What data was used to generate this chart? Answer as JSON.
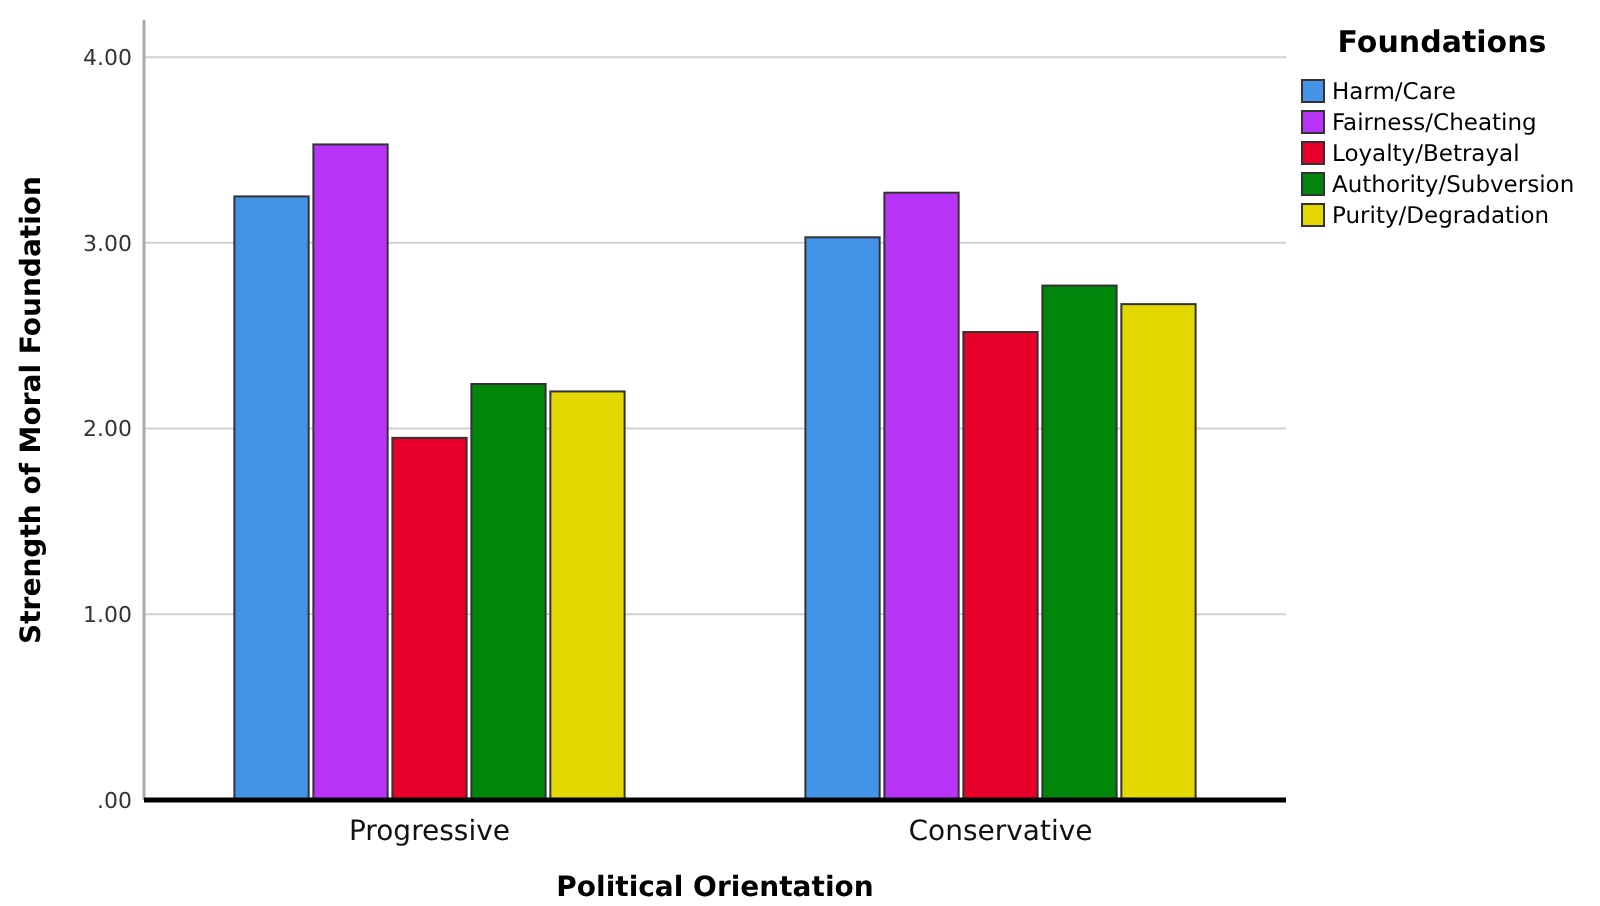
{
  "chart_data": {
    "type": "bar",
    "xlabel": "Political Orientation",
    "ylabel": "Strength of Moral Foundation",
    "legend_title": "Foundations",
    "legend": "top right",
    "grid": "y",
    "categories": [
      "Progressive",
      "Conservative"
    ],
    "ylim": [
      0,
      4.2
    ],
    "yticks": [
      {
        "value": 0,
        "label": ".00"
      },
      {
        "value": 1,
        "label": "1.00"
      },
      {
        "value": 2,
        "label": "2.00"
      },
      {
        "value": 3,
        "label": "3.00"
      },
      {
        "value": 4,
        "label": "4.00"
      }
    ],
    "series": [
      {
        "name": "Harm/Care",
        "color": "#4394e8",
        "values": [
          3.25,
          3.03
        ]
      },
      {
        "name": "Fairness/Cheating",
        "color": "#b835f8",
        "values": [
          3.53,
          3.27
        ]
      },
      {
        "name": "Loyalty/Betrayal",
        "color": "#e8002a",
        "values": [
          1.95,
          2.52
        ]
      },
      {
        "name": "Authority/Subversion",
        "color": "#00860a",
        "values": [
          2.24,
          2.77
        ]
      },
      {
        "name": "Purity/Degradation",
        "color": "#e2d700",
        "values": [
          2.2,
          2.67
        ]
      }
    ]
  }
}
